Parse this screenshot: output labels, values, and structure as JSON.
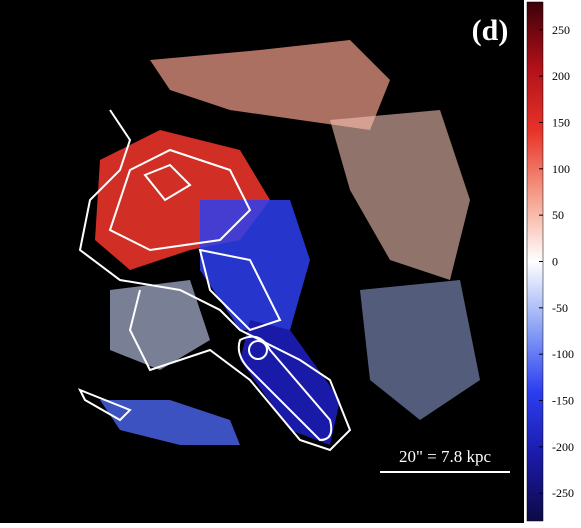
{
  "chart_data": {
    "type": "velocity-map",
    "panel_label": "(d)",
    "scale_bar": "20\" = 7.8 kpc",
    "colorbar": {
      "clim": [
        -280,
        280
      ],
      "ticks": [
        -250,
        -200,
        -150,
        -100,
        -50,
        0,
        50,
        100,
        150,
        200,
        250
      ],
      "colors": [
        "#0d0a45",
        "#1a1aa8",
        "#2d3ef0",
        "#8fa6f5",
        "#ffffff",
        "#f5a08c",
        "#e8342a",
        "#b0101a",
        "#3d0008"
      ]
    }
  }
}
